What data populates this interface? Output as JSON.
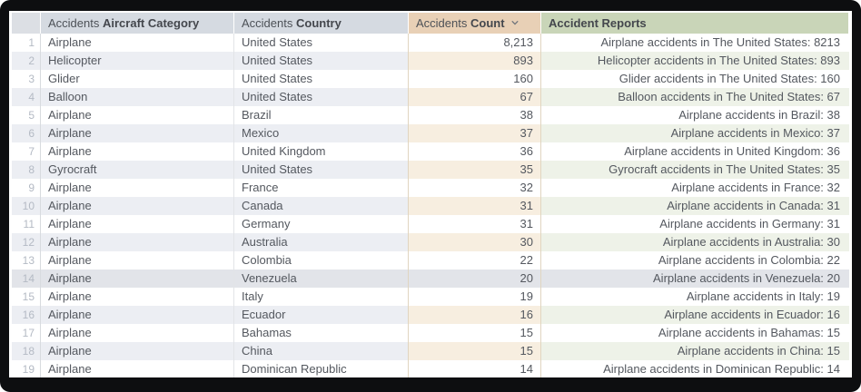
{
  "table": {
    "columns": [
      {
        "id": "row-number",
        "prefix": "",
        "bold": ""
      },
      {
        "id": "aircraft-category",
        "prefix": "Accidents ",
        "bold": "Aircraft Category"
      },
      {
        "id": "country",
        "prefix": "Accidents ",
        "bold": "Country"
      },
      {
        "id": "count",
        "prefix": "Accidents ",
        "bold": "Count",
        "sort": "descending",
        "sort_icon": "chevron-down-icon"
      },
      {
        "id": "reports",
        "prefix": "",
        "bold": "Accident Reports"
      }
    ],
    "rows": [
      {
        "n": 1,
        "category": "Airplane",
        "country": "United States",
        "count": "8,213",
        "report": "Airplane accidents in The United States: 8213"
      },
      {
        "n": 2,
        "category": "Helicopter",
        "country": "United States",
        "count": "893",
        "report": "Helicopter accidents in The United States: 893"
      },
      {
        "n": 3,
        "category": "Glider",
        "country": "United States",
        "count": "160",
        "report": "Glider accidents in The United States: 160"
      },
      {
        "n": 4,
        "category": "Balloon",
        "country": "United States",
        "count": "67",
        "report": "Balloon accidents in The United States: 67"
      },
      {
        "n": 5,
        "category": "Airplane",
        "country": "Brazil",
        "count": "38",
        "report": "Airplane accidents in Brazil: 38"
      },
      {
        "n": 6,
        "category": "Airplane",
        "country": "Mexico",
        "count": "37",
        "report": "Airplane accidents in Mexico: 37"
      },
      {
        "n": 7,
        "category": "Airplane",
        "country": "United Kingdom",
        "count": "36",
        "report": "Airplane accidents in United Kingdom: 36"
      },
      {
        "n": 8,
        "category": "Gyrocraft",
        "country": "United States",
        "count": "35",
        "report": "Gyrocraft accidents in The United States: 35"
      },
      {
        "n": 9,
        "category": "Airplane",
        "country": "France",
        "count": "32",
        "report": "Airplane accidents in France: 32"
      },
      {
        "n": 10,
        "category": "Airplane",
        "country": "Canada",
        "count": "31",
        "report": "Airplane accidents in Canada: 31"
      },
      {
        "n": 11,
        "category": "Airplane",
        "country": "Germany",
        "count": "31",
        "report": "Airplane accidents in Germany: 31"
      },
      {
        "n": 12,
        "category": "Airplane",
        "country": "Australia",
        "count": "30",
        "report": "Airplane accidents in Australia: 30"
      },
      {
        "n": 13,
        "category": "Airplane",
        "country": "Colombia",
        "count": "22",
        "report": "Airplane accidents in Colombia: 22"
      },
      {
        "n": 14,
        "category": "Airplane",
        "country": "Venezuela",
        "count": "20",
        "report": "Airplane accidents in Venezuela: 20"
      },
      {
        "n": 15,
        "category": "Airplane",
        "country": "Italy",
        "count": "19",
        "report": "Airplane accidents in Italy: 19"
      },
      {
        "n": 16,
        "category": "Airplane",
        "country": "Ecuador",
        "count": "16",
        "report": "Airplane accidents in Ecuador: 16"
      },
      {
        "n": 17,
        "category": "Airplane",
        "country": "Bahamas",
        "count": "15",
        "report": "Airplane accidents in Bahamas: 15"
      },
      {
        "n": 18,
        "category": "Airplane",
        "country": "China",
        "count": "15",
        "report": "Airplane accidents in China: 15"
      },
      {
        "n": 19,
        "category": "Airplane",
        "country": "Dominican Republic",
        "count": "14",
        "report": "Airplane accidents in Dominican Republic: 14"
      }
    ],
    "highlighted_row": 14
  },
  "colors": {
    "frame": "#0d0e10",
    "header_default_bg": "#d5dae1",
    "header_rownum_bg": "#dcdfe4",
    "header_count_bg": "#e8d0b6",
    "header_reports_bg": "#c9d5b8",
    "header_text": "#4d5157",
    "header_text_bold": "#44474d",
    "row_alt_bg": "#eceef3",
    "row_alt_count_bg": "#f7eee0",
    "row_alt_report_bg": "#eef2e8",
    "highlight_row_bg": "#e2e4e9",
    "text": "#54585f",
    "row_number_text": "#b4bac4",
    "sort_icon_stroke": "#70757c"
  }
}
